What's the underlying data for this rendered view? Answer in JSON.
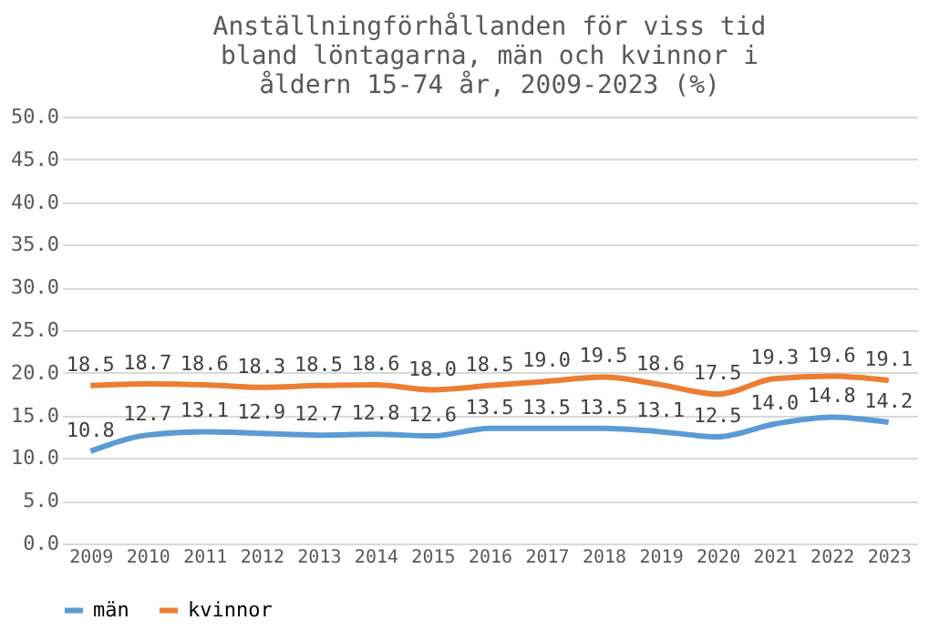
{
  "chart_data": {
    "type": "line",
    "title": [
      "Anställningförhållanden för viss tid",
      "bland löntagarna, män och kvinnor i",
      "åldern 15-74 år, 2009-2023 (%)"
    ],
    "categories": [
      "2009",
      "2010",
      "2011",
      "2012",
      "2013",
      "2014",
      "2015",
      "2016",
      "2017",
      "2018",
      "2019",
      "2020",
      "2021",
      "2022",
      "2023"
    ],
    "series": [
      {
        "name": "män",
        "color": "#5b9bd5",
        "values": [
          10.8,
          12.7,
          13.1,
          12.9,
          12.7,
          12.8,
          12.6,
          13.5,
          13.5,
          13.5,
          13.1,
          12.5,
          14.0,
          14.8,
          14.2
        ],
        "value_labels": [
          "10.8",
          "12.7",
          "13.1",
          "12.9",
          "12.7",
          "12.8",
          "12.6",
          "13.5",
          "13.5",
          "13.5",
          "13.1",
          "12.5",
          "14.0",
          "14.8",
          "14.2"
        ]
      },
      {
        "name": "kvinnor",
        "color": "#ed7d31",
        "values": [
          18.5,
          18.7,
          18.6,
          18.3,
          18.5,
          18.6,
          18.0,
          18.5,
          19.0,
          19.5,
          18.6,
          17.5,
          19.3,
          19.6,
          19.1
        ],
        "value_labels": [
          "18.5",
          "18.7",
          "18.6",
          "18.3",
          "18.5",
          "18.6",
          "18.0",
          "18.5",
          "19.0",
          "19.5",
          "18.6",
          "17.5",
          "19.3",
          "19.6",
          "19.1"
        ]
      }
    ],
    "ylim": [
      0,
      50
    ],
    "yticks": [
      {
        "value": 0,
        "label": "0.0"
      },
      {
        "value": 5,
        "label": "5.0"
      },
      {
        "value": 10,
        "label": "10.0"
      },
      {
        "value": 15,
        "label": "15.0"
      },
      {
        "value": 20,
        "label": "20.0"
      },
      {
        "value": 25,
        "label": "25.0"
      },
      {
        "value": 30,
        "label": "30.0"
      },
      {
        "value": 35,
        "label": "35.0"
      },
      {
        "value": 40,
        "label": "40.0"
      },
      {
        "value": 45,
        "label": "45.0"
      },
      {
        "value": 50,
        "label": "50.0"
      }
    ],
    "grid": "y",
    "legend": "bottom",
    "marker": "none",
    "line_style": "solid"
  }
}
